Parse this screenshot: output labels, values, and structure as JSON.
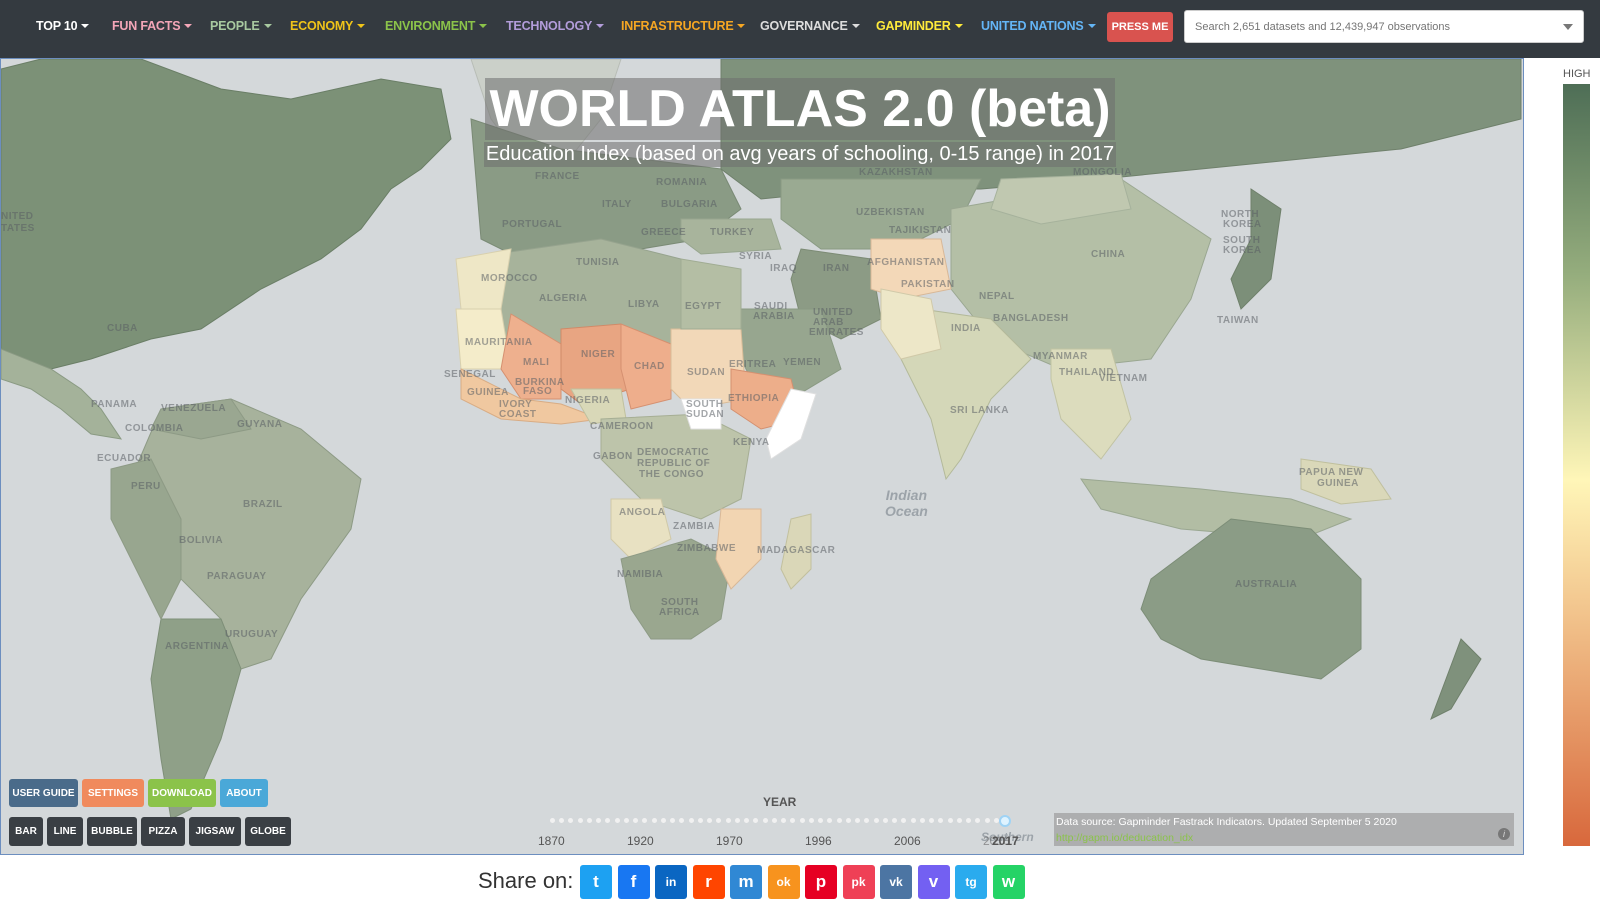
{
  "nav": {
    "items": [
      {
        "label": "TOP 10",
        "color": "#ffffff"
      },
      {
        "label": "FUN FACTS",
        "color": "#f4a6b8"
      },
      {
        "label": "PEOPLE",
        "color": "#a8c9a0"
      },
      {
        "label": "ECONOMY",
        "color": "#f0c419"
      },
      {
        "label": "ENVIRONMENT",
        "color": "#8bc34a"
      },
      {
        "label": "TECHNOLOGY",
        "color": "#b39ddb"
      },
      {
        "label": "INFRASTRUCTURE",
        "color": "#f5a623"
      },
      {
        "label": "GOVERNANCE",
        "color": "#dddddd"
      },
      {
        "label": "GAPMINDER",
        "color": "#ffeb3b"
      },
      {
        "label": "UNITED NATIONS",
        "color": "#64b5f6"
      }
    ],
    "press_me": "PRESS ME",
    "search_placeholder": "Search 2,651 datasets and 12,439,947 observations"
  },
  "map": {
    "title": "WORLD ATLAS 2.0 (beta)",
    "subtitle": "Education Index (based on avg years of schooling, 0-15 range) in 2017",
    "country_labels": [
      "NITED",
      "TATES",
      "FRANCE",
      "ROMANIA",
      "BULGARIA",
      "GREECE",
      "ITALY",
      "PORTUGAL",
      "TURKEY",
      "KAZAKHSTAN",
      "MONGOLIA",
      "UZBEKISTAN",
      "TAJIKISTAN",
      "NORTH",
      "KOREA",
      "SOUTH",
      "KOREA",
      "CHINA",
      "MOROCCO",
      "TUNISIA",
      "ALGERIA",
      "LIBYA",
      "EGYPT",
      "SYRIA",
      "IRAQ",
      "IRAN",
      "AFGHANISTAN",
      "PAKISTAN",
      "NEPAL",
      "SAUDI",
      "ARABIA",
      "UNITED",
      "ARAB",
      "EMIRATES",
      "INDIA",
      "BANGLADESH",
      "TAIWAN",
      "MAURITANIA",
      "MALI",
      "NIGER",
      "CHAD",
      "SUDAN",
      "ERITREA",
      "YEMEN",
      "MYANMAR",
      "THAILAND",
      "VIETNAM",
      "SENEGAL",
      "BURKINA",
      "FASO",
      "GUINEA",
      "IVORY",
      "COAST",
      "NIGERIA",
      "SOUTH",
      "SUDAN",
      "ETHIOPIA",
      "SRI LANKA",
      "CAMEROON",
      "KENYA",
      "GABON",
      "DEMOCRATIC",
      "REPUBLIC OF",
      "THE CONGO",
      "ANGOLA",
      "ZAMBIA",
      "ZIMBABWE",
      "MADAGASCAR",
      "NAMIBIA",
      "SOUTH",
      "AFRICA",
      "PAPUA NEW",
      "GUINEA",
      "AUSTRALIA",
      "VENEZUELA",
      "COLOMBIA",
      "ECUADOR",
      "PERU",
      "BRAZIL",
      "BOLIVIA",
      "PARAGUAY",
      "URUGUAY",
      "ARGENTINA",
      "CUBA",
      "PANAMA",
      "GUYANA"
    ],
    "ocean_label": "Indian\nOcean",
    "ocean_label_south": "Southern"
  },
  "controls": {
    "row1": [
      {
        "label": "USER GUIDE",
        "color": "#4a6b8a"
      },
      {
        "label": "SETTINGS",
        "color": "#f08a5d"
      },
      {
        "label": "DOWNLOAD",
        "color": "#8bc34a"
      },
      {
        "label": "ABOUT",
        "color": "#4aa8d8"
      }
    ],
    "row2": [
      "BAR",
      "LINE",
      "BUBBLE",
      "PIZZA",
      "JIGSAW",
      "GLOBE"
    ]
  },
  "year_slider": {
    "label": "YEAR",
    "ticks": [
      "1870",
      "1920",
      "1970",
      "1996",
      "2006",
      "2016"
    ],
    "current": "2017",
    "current_fraction": 1.0
  },
  "data_source": {
    "text": "Data source: Gapminder Fastrack Indicators. Updated September 5 2020",
    "link": "http://gapm.io/deducation_idx",
    "info": "i"
  },
  "legend": {
    "high_label": "HIGH"
  },
  "share": {
    "label": "Share on:",
    "buttons": [
      {
        "name": "twitter",
        "color": "#1da1f2",
        "glyph": "t"
      },
      {
        "name": "facebook",
        "color": "#1877f2",
        "glyph": "f"
      },
      {
        "name": "linkedin",
        "color": "#0a66c2",
        "glyph": "in"
      },
      {
        "name": "reddit",
        "color": "#ff4500",
        "glyph": "r"
      },
      {
        "name": "mastodon",
        "color": "#3088d4",
        "glyph": "m"
      },
      {
        "name": "odnoklassniki",
        "color": "#f7931e",
        "glyph": "ok"
      },
      {
        "name": "pinterest",
        "color": "#e60023",
        "glyph": "p"
      },
      {
        "name": "pocket",
        "color": "#ef4056",
        "glyph": "pk"
      },
      {
        "name": "vk",
        "color": "#4c75a3",
        "glyph": "vk"
      },
      {
        "name": "viber",
        "color": "#7360f2",
        "glyph": "v"
      },
      {
        "name": "telegram",
        "color": "#2aabee",
        "glyph": "tg"
      },
      {
        "name": "whatsapp",
        "color": "#25d366",
        "glyph": "w"
      }
    ]
  }
}
